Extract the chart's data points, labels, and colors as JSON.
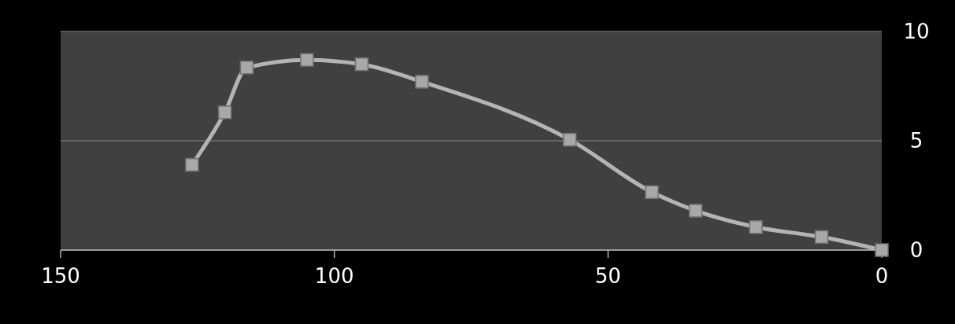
{
  "chart_data": {
    "type": "line",
    "x": [
      126,
      120,
      116,
      105,
      95,
      84,
      57,
      42,
      34,
      23,
      11,
      0
    ],
    "series": [
      {
        "color": "#b4b4b4",
        "values": [
          3.9,
          6.3,
          8.35,
          8.7,
          8.5,
          7.7,
          5.05,
          2.65,
          1.8,
          1.05,
          0.6,
          0
        ]
      }
    ],
    "xlim": [
      150,
      0
    ],
    "xticks": [
      150,
      100,
      50,
      0
    ],
    "ylim": [
      0,
      10
    ],
    "yticks": [
      0,
      5,
      10
    ],
    "grid": "y",
    "marker": "square",
    "line_style": "solid"
  }
}
